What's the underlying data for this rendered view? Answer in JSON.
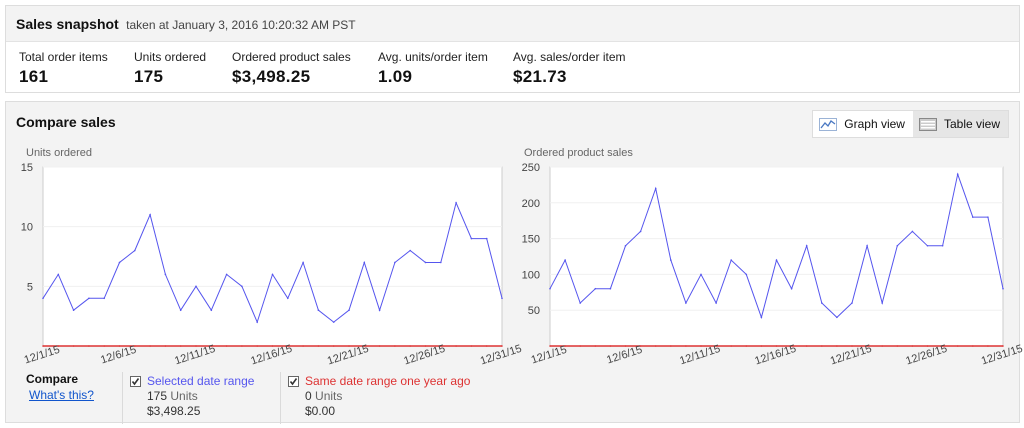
{
  "snapshot": {
    "title": "Sales snapshot",
    "timestamp": "taken at January 3, 2016 10:20:32 AM PST",
    "metrics": [
      {
        "label": "Total order items",
        "value": "161"
      },
      {
        "label": "Units ordered",
        "value": "175"
      },
      {
        "label": "Ordered product sales",
        "value": "$3,498.25"
      },
      {
        "label": "Avg. units/order item",
        "value": "1.09"
      },
      {
        "label": "Avg. sales/order item",
        "value": "$21.73"
      }
    ]
  },
  "compare": {
    "title": "Compare sales",
    "graph_view_label": "Graph view",
    "table_view_label": "Table view",
    "graph_view_icon": "line-chart-icon",
    "table_view_icon": "table-icon"
  },
  "chart_data": [
    {
      "type": "line",
      "title": "Units ordered",
      "x": [
        "12/1/15",
        "12/2/15",
        "12/3/15",
        "12/4/15",
        "12/5/15",
        "12/6/15",
        "12/7/15",
        "12/8/15",
        "12/9/15",
        "12/10/15",
        "12/11/15",
        "12/12/15",
        "12/13/15",
        "12/14/15",
        "12/15/15",
        "12/16/15",
        "12/17/15",
        "12/18/15",
        "12/19/15",
        "12/20/15",
        "12/21/15",
        "12/22/15",
        "12/23/15",
        "12/24/15",
        "12/25/15",
        "12/26/15",
        "12/27/15",
        "12/28/15",
        "12/29/15",
        "12/30/15",
        "12/31/15"
      ],
      "x_tick_labels": [
        "12/1/15",
        "12/6/15",
        "12/11/15",
        "12/16/15",
        "12/21/15",
        "12/26/15",
        "12/31/15"
      ],
      "y_ticks": [
        5,
        10,
        15
      ],
      "ylim": [
        0,
        15
      ],
      "series": [
        {
          "color": "#5555ee",
          "values": [
            4,
            6,
            3,
            4,
            4,
            7,
            8,
            11,
            6,
            3,
            5,
            3,
            6,
            5,
            2,
            6,
            4,
            7,
            3,
            2,
            3,
            7,
            3,
            7,
            8,
            7,
            7,
            12,
            9,
            9,
            4
          ]
        },
        {
          "color": "#dd3333",
          "values": [
            0,
            0,
            0,
            0,
            0,
            0,
            0,
            0,
            0,
            0,
            0,
            0,
            0,
            0,
            0,
            0,
            0,
            0,
            0,
            0,
            0,
            0,
            0,
            0,
            0,
            0,
            0,
            0,
            0,
            0,
            0
          ]
        }
      ]
    },
    {
      "type": "line",
      "title": "Ordered product sales",
      "x": [
        "12/1/15",
        "12/2/15",
        "12/3/15",
        "12/4/15",
        "12/5/15",
        "12/6/15",
        "12/7/15",
        "12/8/15",
        "12/9/15",
        "12/10/15",
        "12/11/15",
        "12/12/15",
        "12/13/15",
        "12/14/15",
        "12/15/15",
        "12/16/15",
        "12/17/15",
        "12/18/15",
        "12/19/15",
        "12/20/15",
        "12/21/15",
        "12/22/15",
        "12/23/15",
        "12/24/15",
        "12/25/15",
        "12/26/15",
        "12/27/15",
        "12/28/15",
        "12/29/15",
        "12/30/15",
        "12/31/15"
      ],
      "x_tick_labels": [
        "12/1/15",
        "12/6/15",
        "12/11/15",
        "12/16/15",
        "12/21/15",
        "12/26/15",
        "12/31/15"
      ],
      "y_ticks": [
        50,
        100,
        150,
        200,
        250
      ],
      "ylim": [
        0,
        250
      ],
      "series": [
        {
          "color": "#5555ee",
          "values": [
            80,
            120,
            60,
            80,
            80,
            140,
            160,
            220,
            120,
            60,
            100,
            60,
            120,
            100,
            40,
            120,
            80,
            140,
            60,
            40,
            60,
            140,
            60,
            140,
            160,
            140,
            140,
            240,
            180,
            180,
            80
          ]
        },
        {
          "color": "#dd3333",
          "values": [
            0,
            0,
            0,
            0,
            0,
            0,
            0,
            0,
            0,
            0,
            0,
            0,
            0,
            0,
            0,
            0,
            0,
            0,
            0,
            0,
            0,
            0,
            0,
            0,
            0,
            0,
            0,
            0,
            0,
            0,
            0
          ]
        }
      ]
    }
  ],
  "legend": {
    "compare_label": "Compare",
    "whats_this": "What's this?",
    "selected": {
      "label": "Selected date range",
      "units": "175",
      "units_word": "Units",
      "sales": "$3,498.25",
      "color": "#5555ee"
    },
    "last_year": {
      "label": "Same date range one year ago",
      "units": "0",
      "units_word": "Units",
      "sales": "$0.00",
      "color": "#dd3333"
    }
  }
}
